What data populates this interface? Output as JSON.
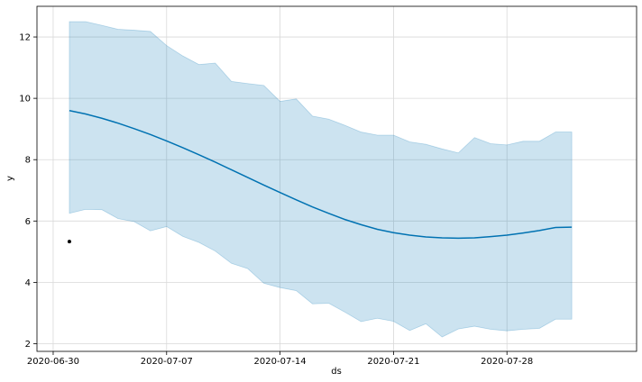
{
  "chart_data": {
    "type": "line",
    "xlabel": "ds",
    "ylabel": "y",
    "xlim": [
      "2020-06-29",
      "2020-08-05"
    ],
    "ylim": [
      1.75,
      13.0
    ],
    "x_ticks": [
      "2020-06-30",
      "2020-07-07",
      "2020-07-14",
      "2020-07-21",
      "2020-07-28"
    ],
    "y_ticks": [
      2,
      4,
      6,
      8,
      10,
      12
    ],
    "grid": true,
    "colors": {
      "line": "#0072B2",
      "band": "#0072B2",
      "point": "#000000"
    },
    "observed": [
      {
        "x": "2020-07-01",
        "y": 5.33
      }
    ],
    "series": [
      {
        "x": [
          "2020-07-01",
          "2020-07-02",
          "2020-07-03",
          "2020-07-04",
          "2020-07-05",
          "2020-07-06",
          "2020-07-07",
          "2020-07-08",
          "2020-07-09",
          "2020-07-10",
          "2020-07-11",
          "2020-07-12",
          "2020-07-13",
          "2020-07-14",
          "2020-07-15",
          "2020-07-16",
          "2020-07-17",
          "2020-07-18",
          "2020-07-19",
          "2020-07-20",
          "2020-07-21",
          "2020-07-22",
          "2020-07-23",
          "2020-07-24",
          "2020-07-25",
          "2020-07-26",
          "2020-07-27",
          "2020-07-28",
          "2020-07-29",
          "2020-07-30",
          "2020-07-31",
          "2020-08-01"
        ],
        "yhat": [
          9.6,
          9.49,
          9.35,
          9.19,
          9.01,
          8.82,
          8.61,
          8.39,
          8.16,
          7.92,
          7.67,
          7.42,
          7.17,
          6.93,
          6.69,
          6.46,
          6.25,
          6.05,
          5.88,
          5.73,
          5.62,
          5.54,
          5.48,
          5.45,
          5.44,
          5.45,
          5.49,
          5.54,
          5.61,
          5.69,
          5.79,
          5.8
        ],
        "yhat_upper": [
          12.5,
          12.5,
          12.38,
          12.25,
          12.22,
          12.18,
          11.72,
          11.38,
          11.1,
          11.15,
          10.55,
          10.48,
          10.42,
          9.9,
          9.98,
          9.42,
          9.32,
          9.12,
          8.9,
          8.8,
          8.8,
          8.58,
          8.5,
          8.35,
          8.22,
          8.72,
          8.52,
          8.48,
          8.6,
          8.6,
          8.9,
          8.9
        ],
        "yhat_lower": [
          6.25,
          6.38,
          6.37,
          6.08,
          5.98,
          5.68,
          5.82,
          5.5,
          5.3,
          5.02,
          4.62,
          4.45,
          3.97,
          3.83,
          3.73,
          3.3,
          3.32,
          3.03,
          2.72,
          2.83,
          2.73,
          2.43,
          2.65,
          2.22,
          2.48,
          2.57,
          2.47,
          2.42,
          2.47,
          2.5,
          2.8,
          2.8
        ]
      }
    ]
  }
}
